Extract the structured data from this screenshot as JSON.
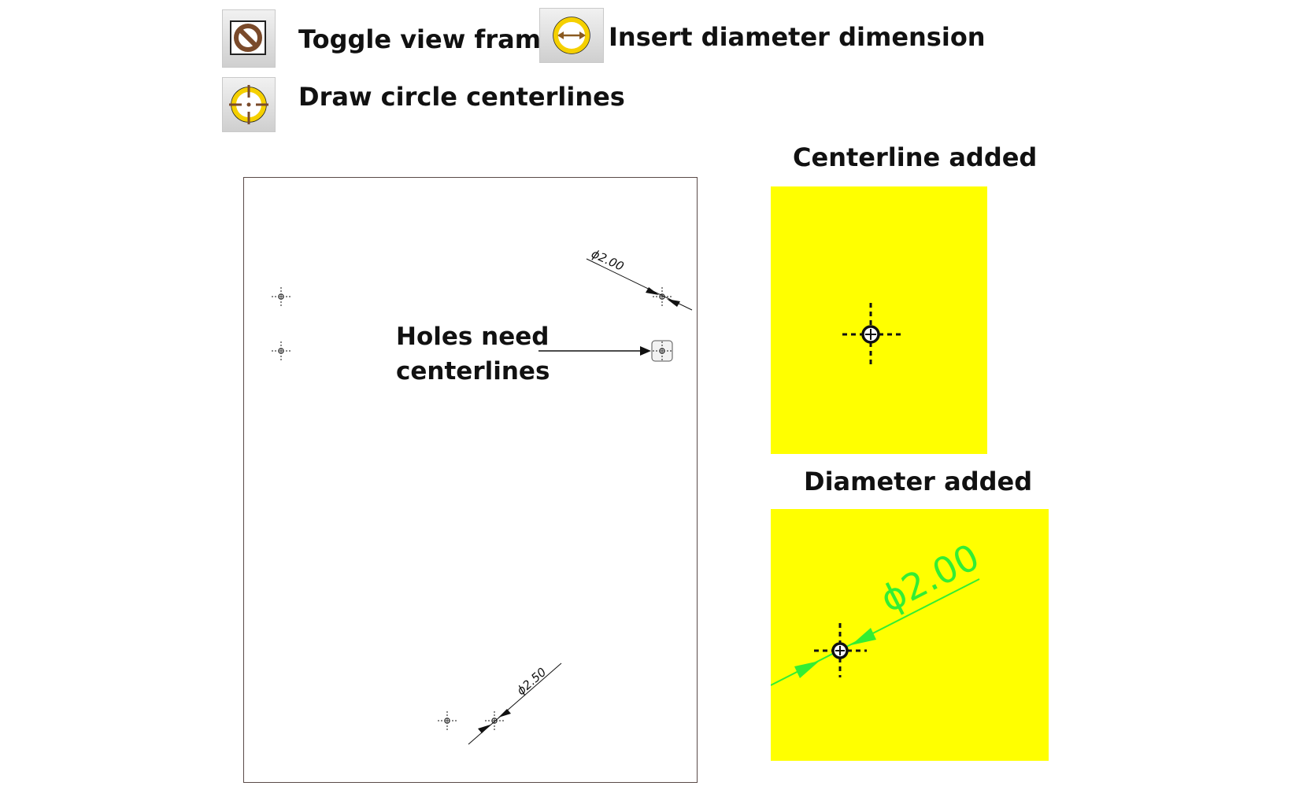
{
  "toolbar": {
    "toggle_view_frames": {
      "label": "Toggle view frames",
      "icon": "no-frames-icon"
    },
    "insert_diameter_dimension": {
      "label": "Insert diameter dimension",
      "icon": "diameter-dimension-icon"
    },
    "draw_circle_centerlines": {
      "label": "Draw circle centerlines",
      "icon": "circle-centerline-icon"
    }
  },
  "drawing": {
    "callout": "Holes need\ncenterlines",
    "dimension_top": "ϕ2.00",
    "dimension_bottom": "ϕ2.50"
  },
  "panels": {
    "centerline_added": {
      "title": "Centerline added"
    },
    "diameter_added": {
      "title": "Diameter added",
      "dimension": "ϕ2.00"
    }
  },
  "colors": {
    "panel_background": "#ffff00",
    "dimension_green": "#33ee33",
    "icon_brown": "#7a4a2a",
    "icon_yellow": "#f5d000"
  }
}
